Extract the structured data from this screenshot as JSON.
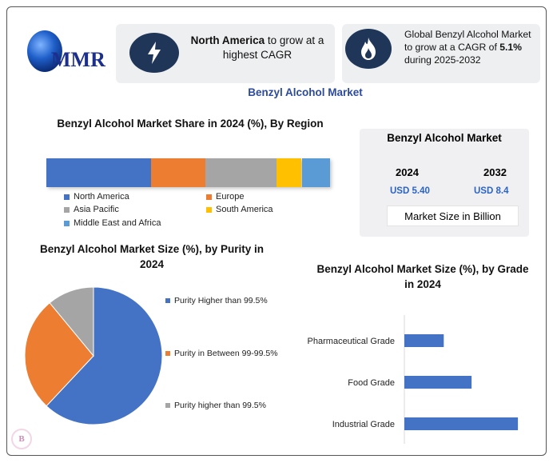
{
  "logo": {
    "text": "MMR"
  },
  "callouts": [
    {
      "icon": "lightning-icon",
      "bold": "North America",
      "rest": " to grow at a highest CAGR"
    },
    {
      "icon": "flame-icon",
      "prefix": "Global Benzyl Alcohol Market to grow at a CAGR of ",
      "bold": "5.1%",
      "suffix": " during 2025-2032"
    }
  ],
  "main_title": "Benzyl Alcohol Market",
  "market_box": {
    "title": "Benzyl Alcohol Market",
    "year1": "2024",
    "value1": "USD 5.40",
    "year2": "2032",
    "value2": "USD 8.4",
    "unit": "Market Size in Billion"
  },
  "colors": {
    "blue": "#4472c4",
    "orange": "#ed7d31",
    "gray": "#a5a5a5",
    "yellow": "#ffc000",
    "lightblue": "#5b9bd5",
    "navy": "#1f3658",
    "title_blue": "#2c4a9e",
    "value_blue": "#2a63c4"
  },
  "chart_data": [
    {
      "type": "bar",
      "orientation": "horizontal-stacked",
      "title": "Benzyl Alcohol Market Share in 2024 (%), By Region",
      "unit": "%",
      "series": [
        {
          "name": "North America",
          "value": 37,
          "color": "#4472c4"
        },
        {
          "name": "Europe",
          "value": 19,
          "color": "#ed7d31"
        },
        {
          "name": "Asia Pacific",
          "value": 25,
          "color": "#a5a5a5"
        },
        {
          "name": "South America",
          "value": 9,
          "color": "#ffc000"
        },
        {
          "name": "Middle East and Africa",
          "value": 10,
          "color": "#5b9bd5"
        }
      ],
      "legend": "bottom"
    },
    {
      "type": "pie",
      "title": "Benzyl Alcohol Market Size (%), by Purity in 2024",
      "slices": [
        {
          "name": "Purity Higher than 99.5%",
          "value": 62,
          "color": "#4472c4"
        },
        {
          "name": "Purity in Between 99-99.5%",
          "value": 27,
          "color": "#ed7d31"
        },
        {
          "name": "Purity higher than 99.5%",
          "value": 11,
          "color": "#a5a5a5"
        }
      ],
      "legend": "right"
    },
    {
      "type": "bar",
      "orientation": "horizontal",
      "title": "Benzyl Alcohol Market Size (%), by Grade in 2024",
      "categories": [
        "Pharmaceutical Grade",
        "Food Grade",
        "Industrial Grade"
      ],
      "values": [
        17,
        29,
        49
      ],
      "color": "#4472c4",
      "xlim": [
        0,
        60
      ]
    }
  ]
}
